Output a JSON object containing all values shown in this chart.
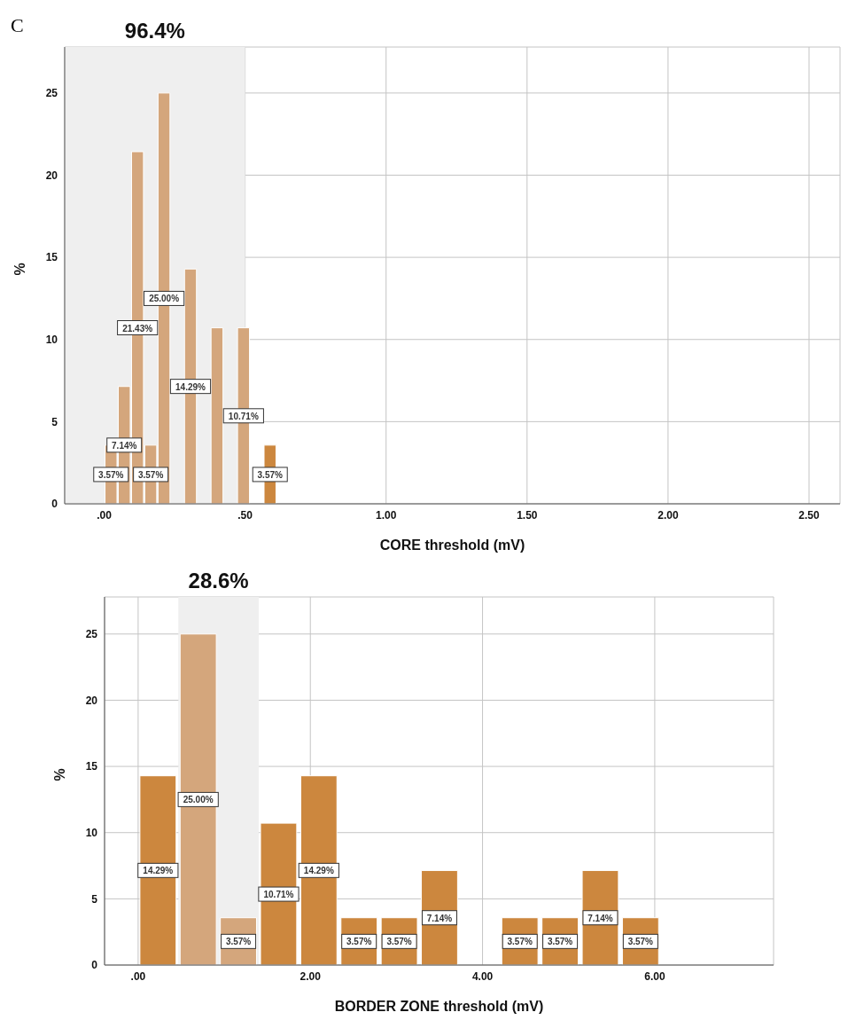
{
  "chart_data": [
    {
      "type": "histogram",
      "annotations": [
        "C"
      ],
      "xlabel": "CORE threshold (mV)",
      "ylabel": "%",
      "bins": [
        0,
        0.047,
        0.094,
        0.141,
        0.188,
        0.235,
        0.282,
        0.329,
        0.376,
        0.423,
        0.47,
        0.517,
        0.564,
        0.611
      ],
      "values": [
        3.57,
        7.14,
        21.43,
        3.57,
        25,
        0,
        14.29,
        0,
        10.71,
        0,
        10.71,
        0,
        3.57
      ],
      "value_labels": [
        "3.57%",
        "7.14%",
        "21.43%",
        "3.57%",
        "25.00%",
        null,
        "14.29%",
        null,
        null,
        null,
        "10.71%",
        null,
        "3.57%"
      ],
      "colors": [
        "#d4a67c",
        "#d4a67c",
        "#d4a67c",
        "#d4a67c",
        "#d4a67c",
        "#d4a67c",
        "#d4a67c",
        "#d4a67c",
        "#d4a67c",
        "#d4a67c",
        "#d4a67c",
        "#cc873e",
        "#cc873e"
      ],
      "bands": [
        {
          "axis": "x",
          "from": -0.14,
          "to": 0.5,
          "label": "96.4%",
          "color": "#efefef"
        }
      ],
      "xlim": [
        -0.14,
        2.61
      ],
      "xticks": [
        {
          "value": 0,
          "label": ".00"
        },
        {
          "value": 0.5,
          "label": ".50"
        },
        {
          "value": 1,
          "label": "1.00"
        },
        {
          "value": 1.5,
          "label": "1.50"
        },
        {
          "value": 2,
          "label": "2.00"
        },
        {
          "value": 2.5,
          "label": "2.50"
        }
      ],
      "ylim": [
        0,
        27.8
      ],
      "yticks": [
        0,
        5,
        10,
        15,
        20,
        25
      ],
      "grid": true
    },
    {
      "type": "histogram",
      "xlabel": "BORDER ZONE threshold (mV)",
      "ylabel": "%",
      "bins": [
        0,
        0.467,
        0.934,
        1.401,
        1.868,
        2.335,
        2.802,
        3.269,
        3.736,
        4.203,
        4.67,
        5.137,
        5.604,
        6.071
      ],
      "values": [
        14.29,
        25,
        3.57,
        10.71,
        14.29,
        3.57,
        3.57,
        7.14,
        0,
        3.57,
        3.57,
        7.14,
        3.57
      ],
      "value_labels": [
        "14.29%",
        "25.00%",
        "3.57%",
        "10.71%",
        "14.29%",
        "3.57%",
        "3.57%",
        "7.14%",
        null,
        "3.57%",
        "3.57%",
        "7.14%",
        "3.57%"
      ],
      "colors": [
        "#cc873e",
        "#d4a67c",
        "#d4a67c",
        "#cc873e",
        "#cc873e",
        "#cc873e",
        "#cc873e",
        "#cc873e",
        "#cc873e",
        "#cc873e",
        "#cc873e",
        "#cc873e",
        "#cc873e"
      ],
      "bands": [
        {
          "axis": "x",
          "from": 0.467,
          "to": 1.401,
          "label": "28.6%",
          "color": "#efefef"
        }
      ],
      "xlim": [
        -0.39,
        7.38
      ],
      "xticks": [
        {
          "value": 0,
          "label": ".00"
        },
        {
          "value": 2,
          "label": "2.00"
        },
        {
          "value": 4,
          "label": "4.00"
        },
        {
          "value": 6,
          "label": "6.00"
        }
      ],
      "ylim": [
        0,
        27.8
      ],
      "yticks": [
        0,
        5,
        10,
        15,
        20,
        25
      ],
      "grid": true
    }
  ]
}
